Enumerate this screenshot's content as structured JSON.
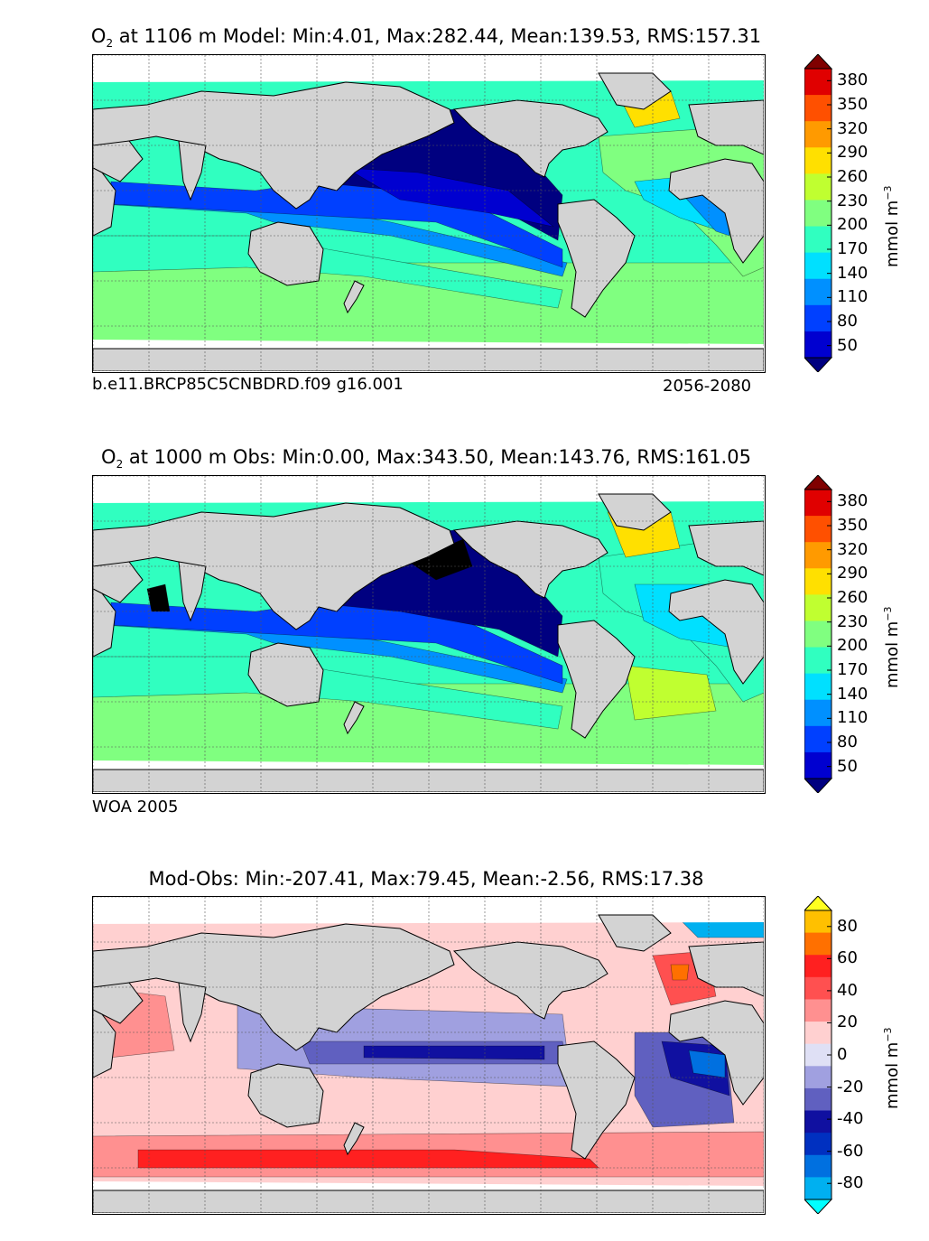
{
  "panels": [
    {
      "id": "model",
      "title_prefix": "O",
      "title_sub": "2",
      "title_rest": " at 1106 m Model: Min:4.01, Max:282.44, Mean:139.53, RMS:157.31",
      "caption_left": "b.e11.BRCP85C5CNBDRD.f09 g16.001",
      "caption_right": "2056-2080",
      "colorbar": {
        "ticks": [
          "380",
          "350",
          "320",
          "290",
          "260",
          "230",
          "200",
          "170",
          "140",
          "110",
          "80",
          "50"
        ],
        "colors": [
          "#800000",
          "#e00000",
          "#ff5000",
          "#ff9a00",
          "#ffe000",
          "#c0ff30",
          "#80ff80",
          "#30ffc0",
          "#00e0ff",
          "#0090ff",
          "#0040ff",
          "#0000d0",
          "#000080"
        ],
        "unit": "mmol m",
        "unit_sup": "−3"
      },
      "map_values": {
        "min": 4.01,
        "max": 282.44,
        "mean": 139.53,
        "rms": 157.31
      }
    },
    {
      "id": "obs",
      "title_prefix": "O",
      "title_sub": "2",
      "title_rest": " at 1000 m Obs: Min:0.00, Max:343.50, Mean:143.76, RMS:161.05",
      "caption_left": "WOA 2005",
      "caption_right": "",
      "colorbar": {
        "ticks": [
          "380",
          "350",
          "320",
          "290",
          "260",
          "230",
          "200",
          "170",
          "140",
          "110",
          "80",
          "50"
        ],
        "colors": [
          "#800000",
          "#e00000",
          "#ff5000",
          "#ff9a00",
          "#ffe000",
          "#c0ff30",
          "#80ff80",
          "#30ffc0",
          "#00e0ff",
          "#0090ff",
          "#0040ff",
          "#0000d0",
          "#000080"
        ],
        "unit": "mmol m",
        "unit_sup": "−3"
      },
      "map_values": {
        "min": 0.0,
        "max": 343.5,
        "mean": 143.76,
        "rms": 161.05
      }
    },
    {
      "id": "diff",
      "title_prefix": "",
      "title_sub": "",
      "title_rest": "Mod-Obs: Min:-207.41, Max:79.45, Mean:-2.56, RMS:17.38",
      "caption_left": "",
      "caption_right": "",
      "colorbar": {
        "ticks": [
          "80",
          "60",
          "40",
          "20",
          "0",
          "-20",
          "-40",
          "-60",
          "-80"
        ],
        "colors": [
          "#ffff20",
          "#ffc000",
          "#ff7000",
          "#ff2020",
          "#ff5050",
          "#ff9090",
          "#ffd0d0",
          "#dfe0f5",
          "#a0a0e0",
          "#6060c0",
          "#1010a0",
          "#0030c0",
          "#0070e0",
          "#00b0f0",
          "#00ffff"
        ],
        "unit": "mmol m",
        "unit_sup": "−3"
      },
      "map_values": {
        "min": -207.41,
        "max": 79.45,
        "mean": -2.56,
        "rms": 17.38
      }
    }
  ],
  "colors": {
    "land": "#d3d3d3",
    "ice": "#ffffff",
    "grid": "#555555"
  }
}
